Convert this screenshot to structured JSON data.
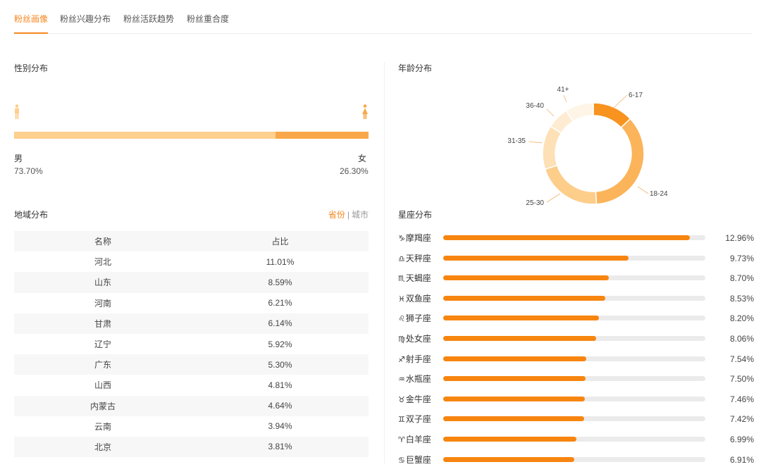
{
  "tabs": [
    {
      "label": "粉丝画像",
      "active": true
    },
    {
      "label": "粉丝兴趣分布",
      "active": false
    },
    {
      "label": "粉丝活跃趋势",
      "active": false
    },
    {
      "label": "粉丝重合度",
      "active": false
    }
  ],
  "gender": {
    "title": "性别分布",
    "male_label": "男",
    "male_pct": "73.70%",
    "female_label": "女",
    "female_pct": "26.30%",
    "male_value": 73.7,
    "female_value": 26.3,
    "male_color": "#fdd08e",
    "female_color": "#f8a84a",
    "male_icon": "male-icon",
    "female_icon": "female-icon"
  },
  "region": {
    "title": "地域分布",
    "toggle_province": "省份",
    "toggle_separator": "|",
    "toggle_city": "城市",
    "header_name": "名称",
    "header_ratio": "占比",
    "rows": [
      {
        "name": "河北",
        "pct": "11.01%"
      },
      {
        "name": "山东",
        "pct": "8.59%"
      },
      {
        "name": "河南",
        "pct": "6.21%"
      },
      {
        "name": "甘肃",
        "pct": "6.14%"
      },
      {
        "name": "辽宁",
        "pct": "5.92%"
      },
      {
        "name": "广东",
        "pct": "5.30%"
      },
      {
        "name": "山西",
        "pct": "4.81%"
      },
      {
        "name": "内蒙古",
        "pct": "4.64%"
      },
      {
        "name": "云南",
        "pct": "3.94%"
      },
      {
        "name": "北京",
        "pct": "3.81%"
      }
    ]
  },
  "age": {
    "title": "年龄分布",
    "accent_colors": [
      "#f7931e",
      "#fbb45a",
      "#fdcd8a",
      "#fde0b5",
      "#feecd2",
      "#fff5e6"
    ],
    "segments": [
      {
        "label": "6-17",
        "value": 13
      },
      {
        "label": "18-24",
        "value": 36
      },
      {
        "label": "25-30",
        "value": 21
      },
      {
        "label": "31-35",
        "value": 14
      },
      {
        "label": "36-40",
        "value": 7
      },
      {
        "label": "41+",
        "value": 9
      }
    ]
  },
  "zodiac": {
    "title": "星座分布",
    "bar_color": "#f7850f",
    "track_color": "#ebebeb",
    "rows": [
      {
        "icon": "♑",
        "icon_name": "capricorn-icon",
        "name": "摩羯座",
        "pct": "12.96%",
        "value": 12.96
      },
      {
        "icon": "♎",
        "icon_name": "libra-icon",
        "name": "天秤座",
        "pct": "9.73%",
        "value": 9.73
      },
      {
        "icon": "♏",
        "icon_name": "scorpio-icon",
        "name": "天蝎座",
        "pct": "8.70%",
        "value": 8.7
      },
      {
        "icon": "♓",
        "icon_name": "pisces-icon",
        "name": "双鱼座",
        "pct": "8.53%",
        "value": 8.53
      },
      {
        "icon": "♌",
        "icon_name": "leo-icon",
        "name": "狮子座",
        "pct": "8.20%",
        "value": 8.2
      },
      {
        "icon": "♍",
        "icon_name": "virgo-icon",
        "name": "处女座",
        "pct": "8.06%",
        "value": 8.06
      },
      {
        "icon": "♐",
        "icon_name": "sagittarius-icon",
        "name": "射手座",
        "pct": "7.54%",
        "value": 7.54
      },
      {
        "icon": "♒",
        "icon_name": "aquarius-icon",
        "name": "水瓶座",
        "pct": "7.50%",
        "value": 7.5
      },
      {
        "icon": "♉",
        "icon_name": "taurus-icon",
        "name": "金牛座",
        "pct": "7.46%",
        "value": 7.46
      },
      {
        "icon": "♊",
        "icon_name": "gemini-icon",
        "name": "双子座",
        "pct": "7.42%",
        "value": 7.42
      },
      {
        "icon": "♈",
        "icon_name": "aries-icon",
        "name": "白羊座",
        "pct": "6.99%",
        "value": 6.99
      },
      {
        "icon": "♋",
        "icon_name": "cancer-icon",
        "name": "巨蟹座",
        "pct": "6.91%",
        "value": 6.91
      }
    ]
  }
}
